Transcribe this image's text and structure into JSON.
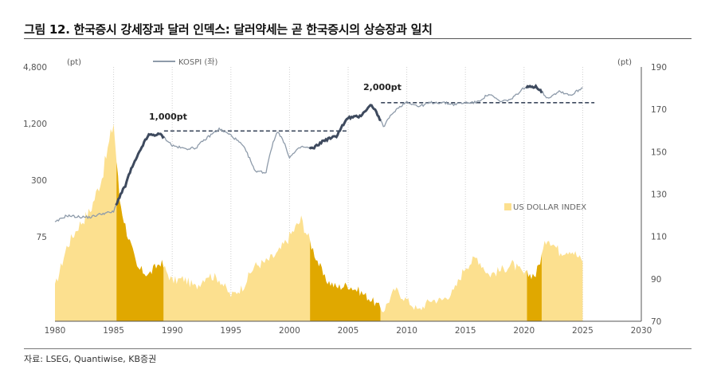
{
  "header": {
    "title": "그림 12. 한국증시 강세장과 달러 인덱스: 달러약세는 곧 한국증시의 상승장과 일치"
  },
  "footer": {
    "source": "자료: LSEG, Quantiwise, KB증권"
  },
  "colors": {
    "dollar_fill": "#FCE08F",
    "dollar_weak_fill": "#E0A800",
    "kospi_line": "#8E9BAA",
    "kospi_bull_line": "#3E4A5E",
    "dashed_line": "#3E4A5E",
    "grid": "#CFCFCF",
    "axis": "#555555"
  },
  "chart_data": {
    "type": "line",
    "x_axis": {
      "ticks": [
        "1980",
        "1985",
        "1990",
        "1995",
        "2000",
        "2005",
        "2010",
        "2015",
        "2020",
        "2025",
        "2030"
      ],
      "range": [
        1980,
        2030
      ]
    },
    "y_left": {
      "unit": "(pt)",
      "scale": "log",
      "ticks": [
        "75",
        "300",
        "1,200",
        "4,800"
      ],
      "range": [
        75,
        4800
      ]
    },
    "y_right": {
      "unit": "(pt)",
      "ticks": [
        "70",
        "90",
        "110",
        "130",
        "150",
        "170",
        "190"
      ],
      "range": [
        70,
        190
      ]
    },
    "annotations": [
      {
        "text": "1,000pt",
        "x": 1989.3,
        "y": 1000
      },
      {
        "text": "2,000pt",
        "x": 2007.8,
        "y": 2000
      }
    ],
    "series": [
      {
        "name": "KOSPI (좌)",
        "axis": "left",
        "points": [
          [
            1980,
            106
          ],
          [
            1981,
            126
          ],
          [
            1982,
            122
          ],
          [
            1983,
            121
          ],
          [
            1984,
            132
          ],
          [
            1985,
            138
          ],
          [
            1986,
            260
          ],
          [
            1987,
            520
          ],
          [
            1988,
            905
          ],
          [
            1989,
            920
          ],
          [
            1990,
            700
          ],
          [
            1991,
            650
          ],
          [
            1992,
            660
          ],
          [
            1993,
            850
          ],
          [
            1994,
            1050
          ],
          [
            1995,
            900
          ],
          [
            1996,
            700
          ],
          [
            1997,
            380
          ],
          [
            1998,
            360
          ],
          [
            1999,
            1000
          ],
          [
            2000,
            520
          ],
          [
            2001,
            680
          ],
          [
            2002,
            650
          ],
          [
            2003,
            800
          ],
          [
            2004,
            880
          ],
          [
            2005,
            1380
          ],
          [
            2006,
            1430
          ],
          [
            2007,
            1900
          ],
          [
            2008,
            1100
          ],
          [
            2009,
            1650
          ],
          [
            2010,
            2050
          ],
          [
            2011,
            1820
          ],
          [
            2012,
            2000
          ],
          [
            2013,
            2010
          ],
          [
            2014,
            1920
          ],
          [
            2015,
            2000
          ],
          [
            2016,
            2020
          ],
          [
            2017,
            2460
          ],
          [
            2018,
            2040
          ],
          [
            2019,
            2200
          ],
          [
            2020,
            2870
          ],
          [
            2021,
            3000
          ],
          [
            2022,
            2230
          ],
          [
            2023,
            2650
          ],
          [
            2024,
            2400
          ],
          [
            2025,
            2900
          ]
        ]
      },
      {
        "name": "US DOLLAR INDEX",
        "axis": "right",
        "points": [
          [
            1980,
            86
          ],
          [
            1981,
            105
          ],
          [
            1982,
            115
          ],
          [
            1983,
            122
          ],
          [
            1984,
            138
          ],
          [
            1985,
            164
          ],
          [
            1985.5,
            128
          ],
          [
            1986,
            115
          ],
          [
            1987,
            95
          ],
          [
            1988,
            92
          ],
          [
            1989,
            98
          ],
          [
            1990,
            89
          ],
          [
            1991,
            90
          ],
          [
            1992,
            86
          ],
          [
            1993,
            92
          ],
          [
            1994,
            90
          ],
          [
            1995,
            82
          ],
          [
            1996,
            86
          ],
          [
            1997,
            96
          ],
          [
            1998,
            98
          ],
          [
            1999,
            102
          ],
          [
            2000,
            110
          ],
          [
            2001,
            118
          ],
          [
            2002,
            104
          ],
          [
            2003,
            90
          ],
          [
            2004,
            86
          ],
          [
            2005,
            87
          ],
          [
            2006,
            84
          ],
          [
            2007,
            80
          ],
          [
            2008,
            75
          ],
          [
            2009,
            85
          ],
          [
            2010,
            80
          ],
          [
            2011,
            75
          ],
          [
            2012,
            80
          ],
          [
            2013,
            80
          ],
          [
            2014,
            84
          ],
          [
            2015,
            96
          ],
          [
            2016,
            100
          ],
          [
            2017,
            92
          ],
          [
            2018,
            94
          ],
          [
            2019,
            97
          ],
          [
            2020,
            92
          ],
          [
            2021,
            92
          ],
          [
            2022,
            110
          ],
          [
            2023,
            103
          ],
          [
            2024,
            104
          ],
          [
            2025,
            98
          ]
        ]
      }
    ],
    "bull_markets": [
      [
        1985.2,
        1989.3
      ],
      [
        2001.7,
        2007.8
      ],
      [
        2020.2,
        2021.5
      ]
    ],
    "reference_lines": [
      {
        "label": "1,000pt",
        "value": 1000,
        "x": [
          1989.3,
          2005.0
        ]
      },
      {
        "label": "2,000pt",
        "value": 2000,
        "x": [
          2007.8,
          2026.0
        ]
      }
    ],
    "grid": "vertical-dotted",
    "legend": "top-left"
  }
}
